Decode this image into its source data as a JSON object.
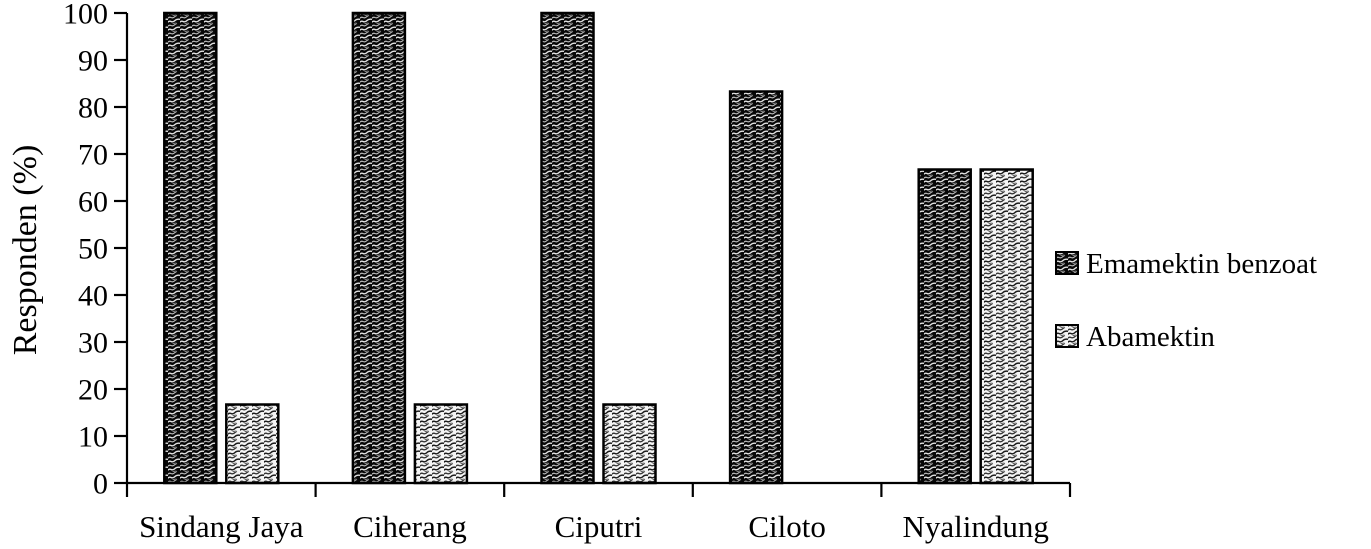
{
  "chart_data": {
    "type": "bar",
    "title": "",
    "categories": [
      "Sindang Jaya",
      "Ciherang",
      "Ciputri",
      "Ciloto",
      "Nyalindung"
    ],
    "series": [
      {
        "name": "Emamektin benzoat",
        "values": [
          100,
          100,
          100,
          83.3,
          66.7
        ],
        "pattern": "dark-weave"
      },
      {
        "name": "Abamektin",
        "values": [
          16.7,
          16.7,
          16.7,
          0,
          66.7
        ],
        "pattern": "light-weave"
      }
    ],
    "xlabel": "",
    "ylabel": "Responden (%)",
    "ylim": [
      0,
      100
    ],
    "yticks": [
      0,
      10,
      20,
      30,
      40,
      50,
      60,
      70,
      80,
      90,
      100
    ],
    "grid": false,
    "legend_position": "right-middle",
    "colors": {
      "background": "#ffffff",
      "axis": "#000000",
      "text": "#000000",
      "dark_pattern_base": "#080808",
      "dark_pattern_stroke": "#e0e0e0",
      "light_pattern_base": "#f4f4f4",
      "light_pattern_stroke": "#1c1c1c"
    }
  }
}
